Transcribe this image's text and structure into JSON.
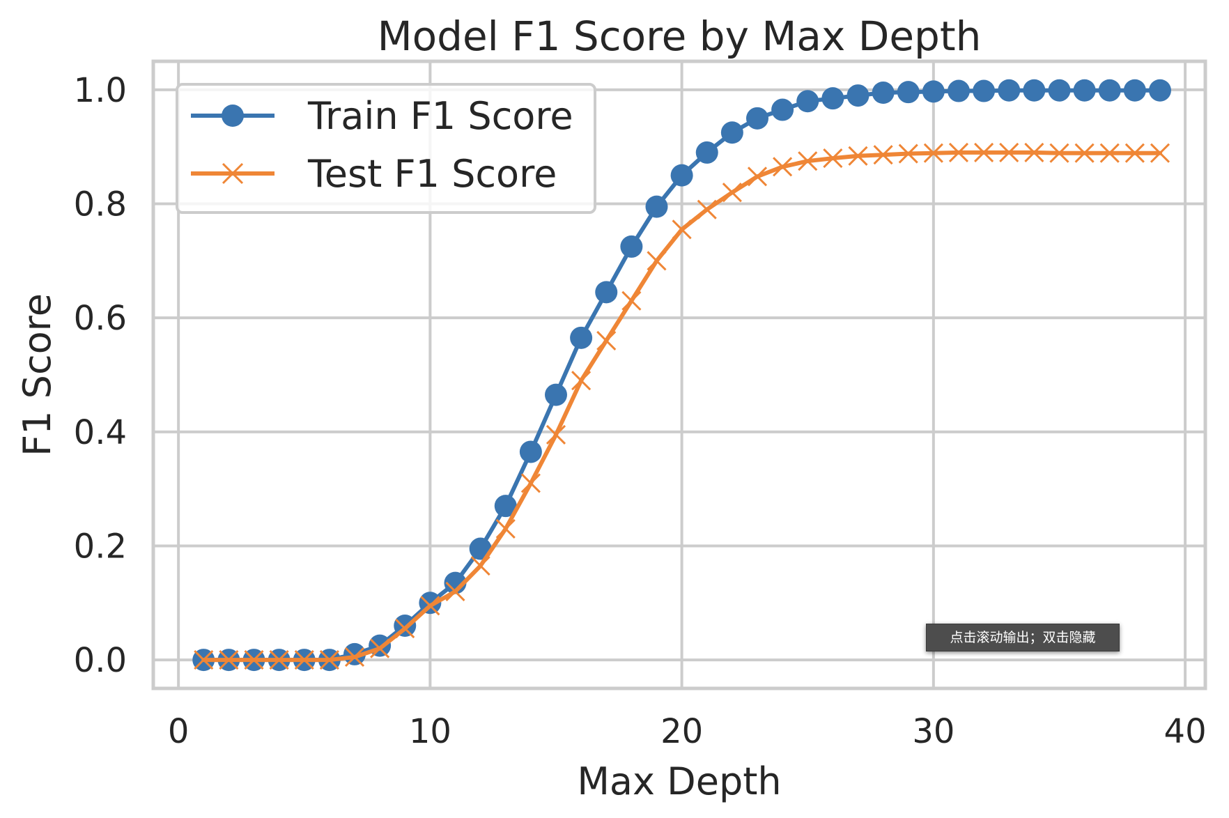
{
  "chart_data": {
    "type": "line",
    "title": "Model F1 Score by Max Depth",
    "xlabel": "Max Depth",
    "ylabel": "F1 Score",
    "xlim": [
      -1,
      40.8
    ],
    "ylim": [
      -0.05,
      1.05
    ],
    "xticks": [
      0,
      10,
      20,
      30,
      40
    ],
    "xtick_labels": [
      "0",
      "10",
      "20",
      "30",
      "40"
    ],
    "yticks": [
      0.0,
      0.2,
      0.4,
      0.6,
      0.8,
      1.0
    ],
    "ytick_labels": [
      "0.0",
      "0.2",
      "0.4",
      "0.6",
      "0.8",
      "1.0"
    ],
    "grid": true,
    "legend_position": "upper-left",
    "x": [
      1,
      2,
      3,
      4,
      5,
      6,
      7,
      8,
      9,
      10,
      11,
      12,
      13,
      14,
      15,
      16,
      17,
      18,
      19,
      20,
      21,
      22,
      23,
      24,
      25,
      26,
      27,
      28,
      29,
      30,
      31,
      32,
      33,
      34,
      35,
      36,
      37,
      38,
      39
    ],
    "series": [
      {
        "name": "Train F1 Score",
        "color": "#3a75b0",
        "marker": "circle",
        "values": [
          0.0,
          0.0,
          0.0,
          0.0,
          0.0,
          0.0,
          0.01,
          0.025,
          0.06,
          0.1,
          0.135,
          0.195,
          0.27,
          0.365,
          0.465,
          0.565,
          0.645,
          0.725,
          0.795,
          0.85,
          0.89,
          0.925,
          0.95,
          0.965,
          0.98,
          0.985,
          0.99,
          0.995,
          0.996,
          0.997,
          0.998,
          0.998,
          0.999,
          0.999,
          0.999,
          0.999,
          0.999,
          0.999,
          0.999
        ]
      },
      {
        "name": "Test F1 Score",
        "color": "#ef8636",
        "marker": "x",
        "values": [
          0.0,
          0.0,
          0.0,
          0.0,
          0.0,
          0.0,
          0.005,
          0.02,
          0.055,
          0.095,
          0.12,
          0.165,
          0.23,
          0.31,
          0.395,
          0.49,
          0.56,
          0.63,
          0.7,
          0.755,
          0.79,
          0.82,
          0.848,
          0.865,
          0.875,
          0.88,
          0.884,
          0.886,
          0.888,
          0.889,
          0.89,
          0.89,
          0.89,
          0.89,
          0.889,
          0.889,
          0.889,
          0.889,
          0.889
        ]
      }
    ]
  },
  "overlay": {
    "toast_text": "点击滚动输出；双击隐藏"
  }
}
